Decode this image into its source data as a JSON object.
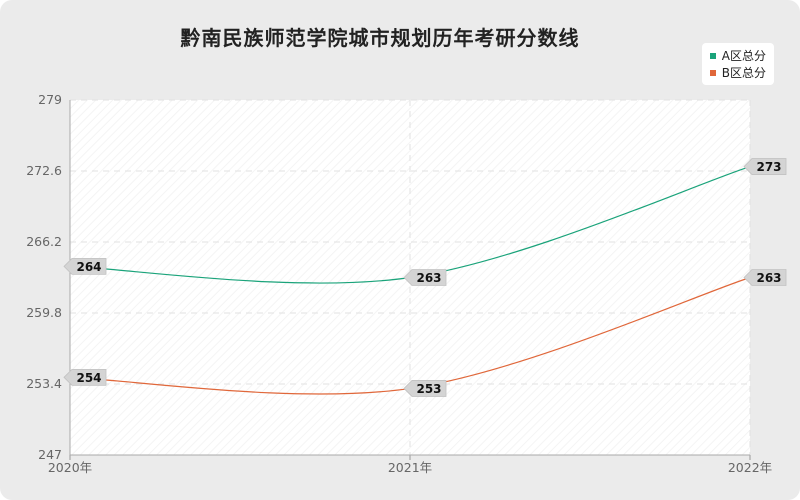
{
  "chart_data": {
    "type": "line",
    "title": "黔南民族师范学院城市规划历年考研分数线",
    "categories": [
      "2020年",
      "2021年",
      "2022年"
    ],
    "series": [
      {
        "name": "A区总分",
        "values": [
          264,
          263,
          273
        ],
        "color": "#1aa37a"
      },
      {
        "name": "B区总分",
        "values": [
          254,
          253,
          263
        ],
        "color": "#e0673a"
      }
    ],
    "yticks": [
      "279",
      "272.6",
      "266.2",
      "259.8",
      "253.4",
      "247"
    ],
    "ylim": [
      247,
      279
    ],
    "grid": true,
    "legend_position": "top-right"
  }
}
